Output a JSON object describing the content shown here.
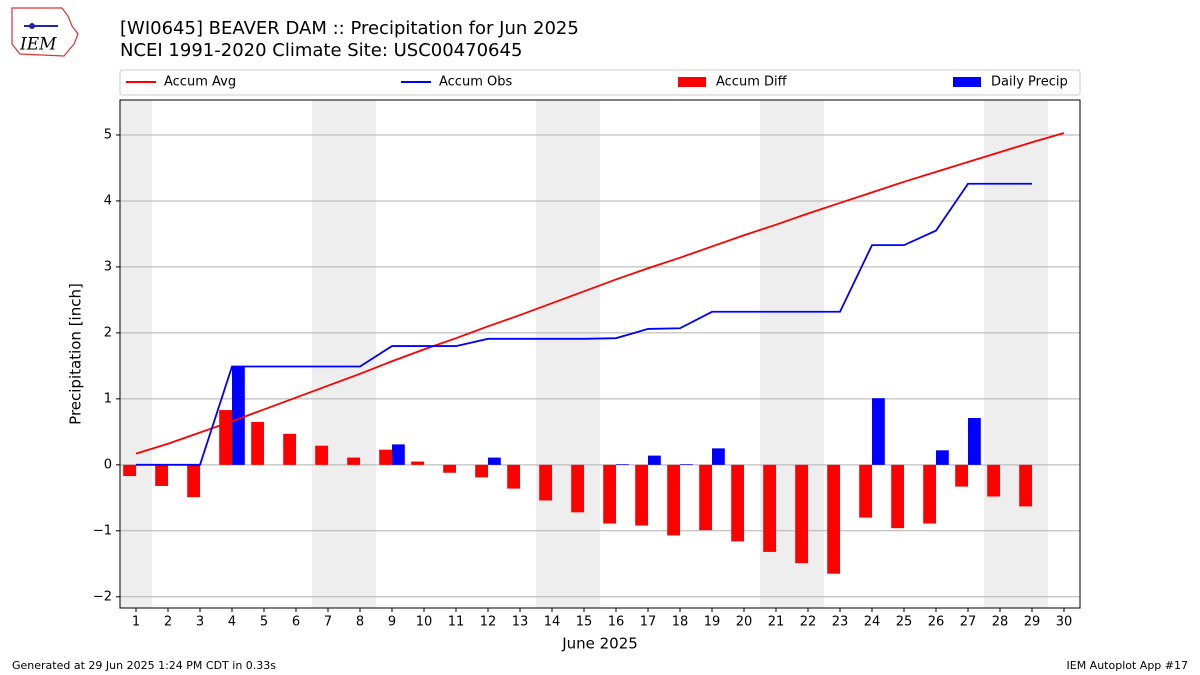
{
  "chart_data": {
    "type": "bar",
    "title": "[WI0645] BEAVER DAM :: Precipitation for Jun 2025",
    "subtitle": "NCEI 1991-2020 Climate Site: USC00470645",
    "xlabel": "June 2025",
    "ylabel": "Precipitation [inch]",
    "logo": "IEM",
    "footer_left": "Generated at 29 Jun 2025 1:24 PM CDT in 0.33s",
    "footer_right": "IEM Autoplot App #17",
    "x": [
      1,
      2,
      3,
      4,
      5,
      6,
      7,
      8,
      9,
      10,
      11,
      12,
      13,
      14,
      15,
      16,
      17,
      18,
      19,
      20,
      21,
      22,
      23,
      24,
      25,
      26,
      27,
      28,
      29,
      30
    ],
    "xticks": [
      1,
      2,
      3,
      4,
      5,
      6,
      7,
      8,
      9,
      10,
      11,
      12,
      13,
      14,
      15,
      16,
      17,
      18,
      19,
      20,
      21,
      22,
      23,
      24,
      25,
      26,
      27,
      28,
      29,
      30
    ],
    "xlim": [
      0.5,
      30.5
    ],
    "ylim": [
      -2.17,
      5.53
    ],
    "yticks": [
      {
        "value": -2,
        "label": "−2"
      },
      {
        "value": -1,
        "label": "−1"
      },
      0,
      1,
      2,
      3,
      4,
      5
    ],
    "grid": true,
    "shaded": [
      [
        0.5,
        1.5
      ],
      [
        6.5,
        8.5
      ],
      [
        13.5,
        15.5
      ],
      [
        20.5,
        22.5
      ],
      [
        27.5,
        29.5
      ]
    ],
    "shade_color": "#eeeeee",
    "series": [
      {
        "name": "Accum Avg",
        "type": "line",
        "color": "#ff0000",
        "values": [
          0.17,
          0.32,
          0.49,
          0.66,
          0.84,
          1.02,
          1.2,
          1.38,
          1.57,
          1.75,
          1.92,
          2.1,
          2.27,
          2.45,
          2.63,
          2.81,
          2.98,
          3.14,
          3.31,
          3.48,
          3.64,
          3.81,
          3.97,
          4.13,
          4.29,
          4.44,
          4.59,
          4.74,
          4.89,
          5.03
        ]
      },
      {
        "name": "Accum Obs",
        "type": "line",
        "color": "#0000ff",
        "values": [
          0,
          0,
          0,
          1.49,
          1.49,
          1.49,
          1.49,
          1.49,
          1.8,
          1.8,
          1.8,
          1.91,
          1.91,
          1.91,
          1.91,
          1.92,
          2.06,
          2.07,
          2.32,
          2.32,
          2.32,
          2.32,
          2.32,
          3.33,
          3.33,
          3.55,
          4.26,
          4.26,
          4.26,
          null
        ]
      },
      {
        "name": "Accum Diff",
        "type": "bar",
        "color": "#ff0000",
        "values": [
          -0.17,
          -0.32,
          -0.49,
          0.83,
          0.65,
          0.47,
          0.29,
          0.11,
          0.23,
          0.05,
          -0.12,
          -0.19,
          -0.36,
          -0.54,
          -0.72,
          -0.89,
          -0.92,
          -1.07,
          -0.99,
          -1.16,
          -1.32,
          -1.49,
          -1.65,
          -0.8,
          -0.96,
          -0.89,
          -0.33,
          -0.48,
          -0.63,
          null
        ]
      },
      {
        "name": "Daily Precip",
        "type": "bar",
        "color": "#0000ff",
        "values": [
          0,
          0,
          0,
          1.49,
          0,
          0,
          0,
          0,
          0.31,
          0,
          0,
          0.11,
          0,
          0,
          0,
          0.01,
          0.14,
          0.01,
          0.25,
          0,
          0,
          0,
          0,
          1.01,
          0,
          0.22,
          0.71,
          0,
          0,
          null
        ]
      }
    ]
  }
}
